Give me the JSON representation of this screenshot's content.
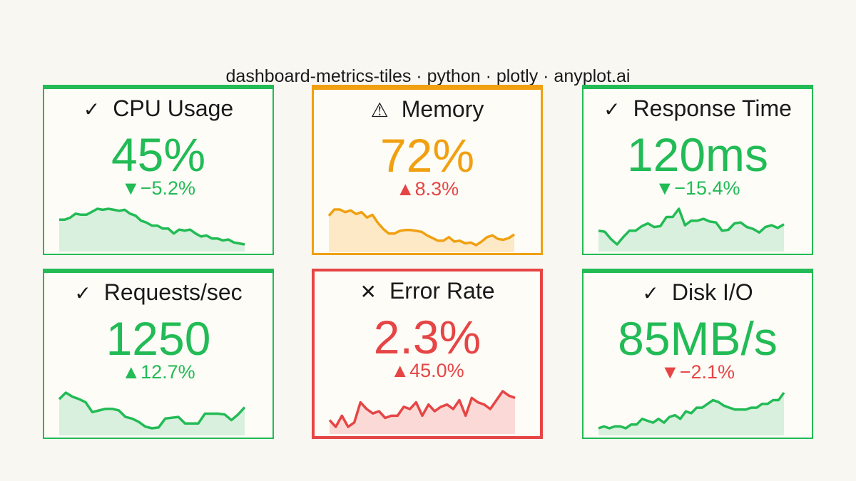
{
  "title": "dashboard-metrics-tiles · python · plotly · anyplot.ai",
  "colors": {
    "good": "#22bb55",
    "warning": "#f0a010",
    "critical": "#e64545"
  },
  "chart_data": {
    "type": "line",
    "tiles": [
      {
        "label": "CPU Usage",
        "value": "45%",
        "delta": "▼−5.2%",
        "status": "good",
        "icon": "✓",
        "sparkline": [
          61,
          61,
          63,
          67,
          66,
          66,
          69,
          72,
          71,
          72,
          71,
          70,
          71,
          67,
          65,
          60,
          58,
          55,
          55,
          52,
          52,
          47,
          51,
          50,
          51,
          47,
          44,
          45,
          42,
          42,
          40,
          41,
          38,
          37,
          36
        ]
      },
      {
        "label": "Memory",
        "value": "72%",
        "delta": "▲8.3%",
        "status": "warning",
        "icon": "⚠",
        "sparkline": [
          80,
          87,
          87,
          84,
          86,
          82,
          84,
          78,
          81,
          72,
          65,
          60,
          60,
          63,
          64,
          64,
          63,
          62,
          58,
          55,
          52,
          52,
          56,
          51,
          52,
          49,
          50,
          47,
          51,
          56,
          58,
          54,
          53,
          55,
          59
        ]
      },
      {
        "label": "Response Time",
        "value": "120ms",
        "delta": "▼−15.4%",
        "status": "good",
        "icon": "✓",
        "sparkline": [
          113,
          112,
          104,
          98,
          106,
          113,
          113,
          118,
          121,
          117,
          118,
          128,
          128,
          137,
          119,
          124,
          124,
          126,
          123,
          122,
          113,
          114,
          121,
          122,
          117,
          115,
          111,
          117,
          119,
          116,
          120
        ]
      },
      {
        "label": "Requests/sec",
        "value": "1250",
        "delta": "▲12.7%",
        "status": "good",
        "icon": "✓",
        "sparkline": [
          1282,
          1290,
          1285,
          1282,
          1278,
          1266,
          1268,
          1270,
          1270,
          1268,
          1260,
          1258,
          1254,
          1248,
          1246,
          1247,
          1258,
          1259,
          1260,
          1252,
          1252,
          1252,
          1264,
          1264,
          1264,
          1263,
          1256,
          1263,
          1272
        ]
      },
      {
        "label": "Error Rate",
        "value": "2.3%",
        "delta": "▲45.0%",
        "status": "critical",
        "icon": "✕",
        "sparkline": [
          1.5,
          1.2,
          1.7,
          1.2,
          1.4,
          2.3,
          2.0,
          1.8,
          1.9,
          1.6,
          1.7,
          1.7,
          2.1,
          2.0,
          2.3,
          1.7,
          2.2,
          1.9,
          2.1,
          2.2,
          2.0,
          2.4,
          1.7,
          2.5,
          2.3,
          2.2,
          2.0,
          2.4,
          2.8,
          2.6,
          2.5
        ]
      },
      {
        "label": "Disk I/O",
        "value": "85MB/s",
        "delta": "▼−2.1%",
        "status": "good",
        "icon": "✓",
        "sparkline": [
          69,
          70,
          69,
          70,
          70,
          69,
          71,
          71,
          74,
          73,
          72,
          74,
          72,
          75,
          76,
          74,
          78,
          77,
          80,
          80,
          82,
          84,
          83,
          81,
          80,
          79,
          79,
          79,
          80,
          80,
          82,
          82,
          84,
          84,
          88
        ]
      }
    ]
  }
}
